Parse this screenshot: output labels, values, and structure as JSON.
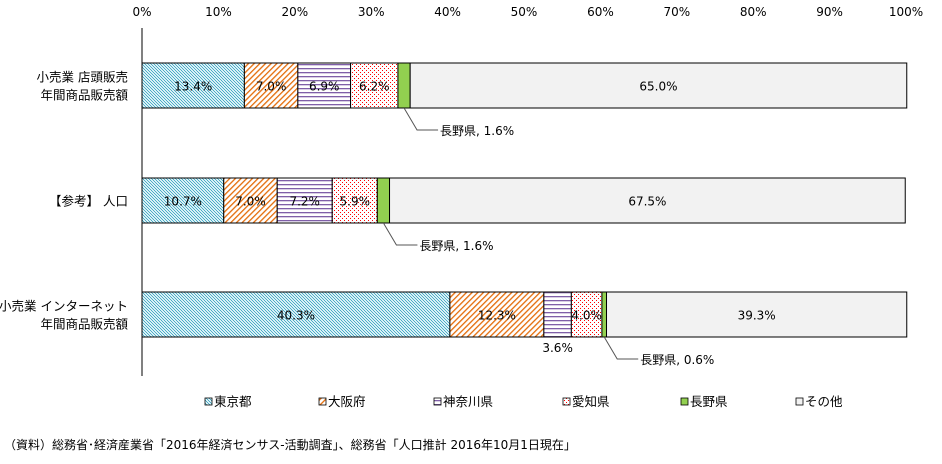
{
  "chart_data": {
    "type": "bar",
    "orientation": "horizontal",
    "stacked": true,
    "xlim": [
      0,
      100
    ],
    "x_ticks": [
      "0%",
      "10%",
      "20%",
      "30%",
      "40%",
      "50%",
      "60%",
      "70%",
      "80%",
      "90%",
      "100%"
    ],
    "categories": [
      [
        "小売業 店頭販売",
        "年間商品販売額"
      ],
      [
        "【参考】 人口"
      ],
      [
        "小売業 インターネット",
        "年間商品販売額"
      ]
    ],
    "series": [
      {
        "name": "東京都",
        "values": [
          13.4,
          10.7,
          40.3
        ],
        "color": "#4bacc6"
      },
      {
        "name": "大阪府",
        "values": [
          7.0,
          7.0,
          12.3
        ],
        "color": "#e46c0a"
      },
      {
        "name": "神奈川県",
        "values": [
          6.9,
          7.2,
          3.6
        ],
        "color": "#7f5fa8"
      },
      {
        "name": "愛知県",
        "values": [
          6.2,
          5.9,
          4.0
        ],
        "color": "#ff0000"
      },
      {
        "name": "長野県",
        "values": [
          1.6,
          1.6,
          0.6
        ],
        "color": "#92d050"
      },
      {
        "name": "その他",
        "values": [
          65.0,
          67.5,
          39.3
        ],
        "color": "#f2f2f2"
      }
    ],
    "data_labels": [
      [
        "13.4%",
        "7.0%",
        "6.9%",
        "6.2%",
        "長野県, 1.6%",
        "65.0%"
      ],
      [
        "10.7%",
        "7.0%",
        "7.2%",
        "5.9%",
        "長野県, 1.6%",
        "67.5%"
      ],
      [
        "40.3%",
        "12.3%",
        "3.6%",
        "4.0%",
        "長野県, 0.6%",
        "39.3%"
      ]
    ],
    "legend_position": "bottom"
  },
  "source_note": "（資料）総務省･経済産業省「2016年経済センサス-活動調査」、総務省「人口推計 2016年10月1日現在」"
}
